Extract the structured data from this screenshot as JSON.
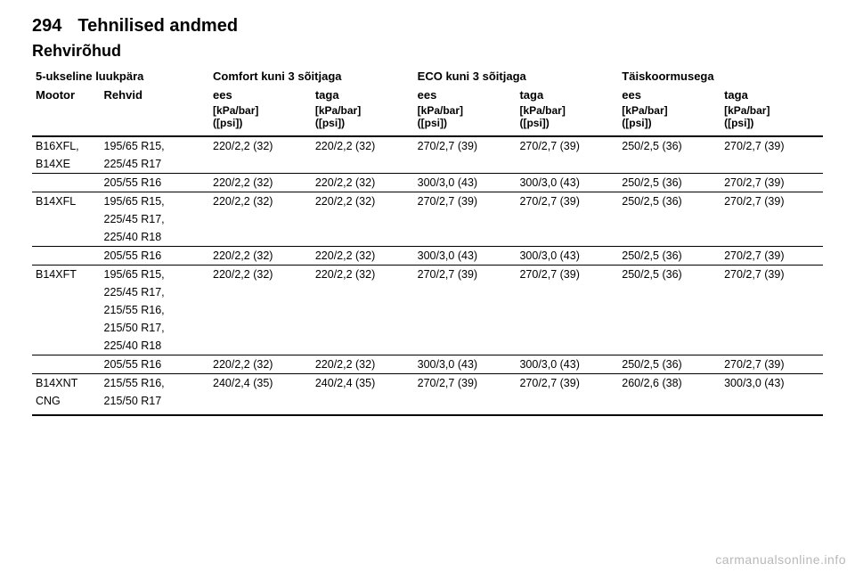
{
  "page_number": "294",
  "section_title": "Tehnilised andmed",
  "table_title": "Rehvirõhud",
  "body_type_label": "5-ukseline luukpära",
  "watermark": "carmanualsonline.info",
  "groups": {
    "comfort": "Comfort kuni 3 sõitjaga",
    "eco": "ECO kuni 3 sõitjaga",
    "full": "Täiskoormusega"
  },
  "col_labels": {
    "engine": "Mootor",
    "tyres": "Rehvid",
    "front": "ees",
    "rear": "taga"
  },
  "unit_line1": "[kPa/bar]",
  "unit_line2": "([psi])",
  "rows": [
    {
      "engine": [
        "B16XFL,",
        "B14XE"
      ],
      "tyre_groups": [
        {
          "tyres": [
            "195/65 R15,",
            "225/45 R17"
          ],
          "vals": [
            "220/2,2 (32)",
            "220/2,2 (32)",
            "270/2,7 (39)",
            "270/2,7 (39)",
            "250/2,5 (36)",
            "270/2,7 (39)"
          ]
        },
        {
          "tyres": [
            "205/55 R16"
          ],
          "vals": [
            "220/2,2 (32)",
            "220/2,2 (32)",
            "300/3,0 (43)",
            "300/3,0 (43)",
            "250/2,5 (36)",
            "270/2,7 (39)"
          ]
        }
      ]
    },
    {
      "engine": [
        "B14XFL"
      ],
      "tyre_groups": [
        {
          "tyres": [
            "195/65 R15,",
            "225/45 R17,",
            "225/40 R18"
          ],
          "vals": [
            "220/2,2 (32)",
            "220/2,2 (32)",
            "270/2,7 (39)",
            "270/2,7 (39)",
            "250/2,5 (36)",
            "270/2,7 (39)"
          ]
        },
        {
          "tyres": [
            "205/55 R16"
          ],
          "vals": [
            "220/2,2 (32)",
            "220/2,2 (32)",
            "300/3,0 (43)",
            "300/3,0 (43)",
            "250/2,5 (36)",
            "270/2,7 (39)"
          ]
        }
      ]
    },
    {
      "engine": [
        "B14XFT"
      ],
      "tyre_groups": [
        {
          "tyres": [
            "195/65 R15,",
            "225/45 R17,",
            "215/55 R16,",
            "215/50 R17,",
            "225/40 R18"
          ],
          "vals": [
            "220/2,2 (32)",
            "220/2,2 (32)",
            "270/2,7 (39)",
            "270/2,7 (39)",
            "250/2,5 (36)",
            "270/2,7 (39)"
          ]
        },
        {
          "tyres": [
            "205/55 R16"
          ],
          "vals": [
            "220/2,2 (32)",
            "220/2,2 (32)",
            "300/3,0 (43)",
            "300/3,0 (43)",
            "250/2,5 (36)",
            "270/2,7 (39)"
          ]
        }
      ]
    },
    {
      "engine": [
        "B14XNT",
        "CNG"
      ],
      "tyre_groups": [
        {
          "tyres": [
            "215/55 R16,",
            "215/50 R17"
          ],
          "vals": [
            "240/2,4 (35)",
            "240/2,4 (35)",
            "270/2,7 (39)",
            "270/2,7 (39)",
            "260/2,6 (38)",
            "300/3,0 (43)"
          ]
        }
      ]
    }
  ]
}
